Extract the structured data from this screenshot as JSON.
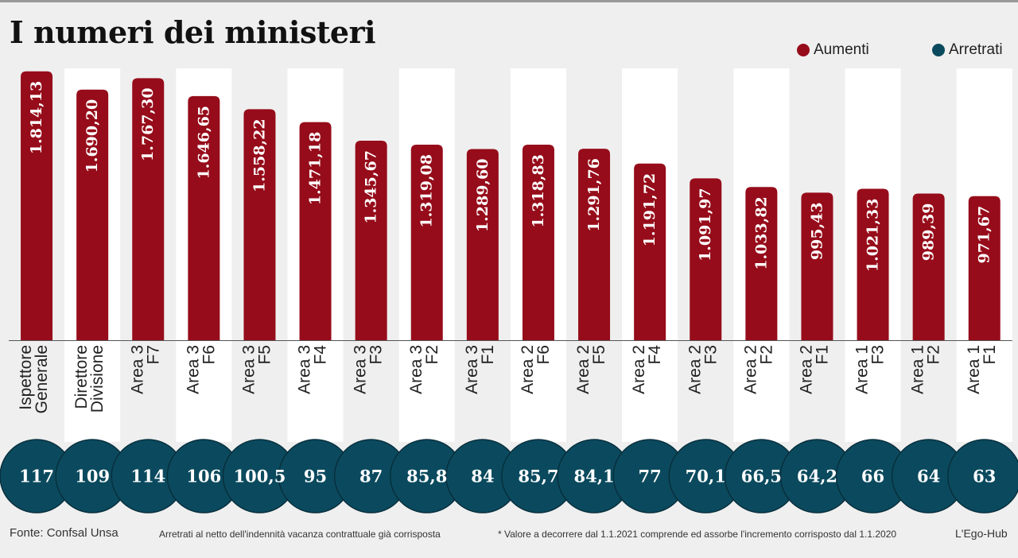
{
  "title": "I numeri dei ministeri",
  "legend": {
    "aumenti": "Aumenti",
    "arretrati": "Arretrati"
  },
  "colors": {
    "aumenti": "#960c1a",
    "arretrati": "#0b4a5e",
    "stripe": "#ffffff",
    "background": "#efefef"
  },
  "footer": {
    "source": "Fonte: Confsal Unsa",
    "note": "Arretrati al netto dell'indennità vacanza contrattuale già corrisposta",
    "asterisk": "* Valore a decorrere dal 1.1.2021 comprende ed assorbe l'incremento corrisposto dal 1.1.2020",
    "credit": "L'Ego-Hub"
  },
  "chart_data": {
    "type": "bar",
    "title": "I numeri dei ministeri",
    "ylim": [
      0,
      1850
    ],
    "categories": [
      [
        "Ispettore",
        "Generale"
      ],
      [
        "Direttore",
        "Divisione"
      ],
      [
        "Area 3",
        "F7"
      ],
      [
        "Area 3",
        "F6"
      ],
      [
        "Area 3",
        "F5"
      ],
      [
        "Area 3",
        "F4"
      ],
      [
        "Area 3",
        "F3"
      ],
      [
        "Area 3",
        "F2"
      ],
      [
        "Area 3",
        "F1"
      ],
      [
        "Area 2",
        "F6"
      ],
      [
        "Area 2",
        "F5"
      ],
      [
        "Area 2",
        "F4"
      ],
      [
        "Area 2",
        "F3"
      ],
      [
        "Area 2",
        "F2"
      ],
      [
        "Area 2",
        "F1"
      ],
      [
        "Area 1",
        "F3"
      ],
      [
        "Area 1",
        "F2"
      ],
      [
        "Area 1",
        "F1"
      ]
    ],
    "series": [
      {
        "name": "Aumenti",
        "values": [
          1814.13,
          1690.2,
          1767.3,
          1646.65,
          1558.22,
          1471.18,
          1345.67,
          1319.08,
          1289.6,
          1318.83,
          1291.76,
          1191.72,
          1091.97,
          1033.82,
          995.43,
          1021.33,
          989.39,
          971.67
        ],
        "labels": [
          "1.814,13",
          "1.690,20",
          "1.767,30",
          "1.646,65",
          "1.558,22",
          "1.471,18",
          "1.345,67",
          "1.319,08",
          "1.289,60",
          "1.318,83",
          "1.291,76",
          "1.191,72",
          "1.091,97",
          "1.033,82",
          "995,43",
          "1.021,33",
          "989,39",
          "971,67"
        ]
      },
      {
        "name": "Arretrati",
        "values": [
          117,
          109,
          114,
          106,
          100.5,
          95,
          87,
          85.8,
          84,
          85.7,
          84.1,
          77,
          70.1,
          66.5,
          64.2,
          66,
          64,
          63
        ],
        "labels": [
          "117",
          "109",
          "114",
          "106",
          "100,5",
          "95",
          "87",
          "85,8",
          "84",
          "85,7",
          "84,1",
          "77",
          "70,1",
          "66,5",
          "64,2",
          "66",
          "64",
          "63"
        ]
      }
    ]
  }
}
